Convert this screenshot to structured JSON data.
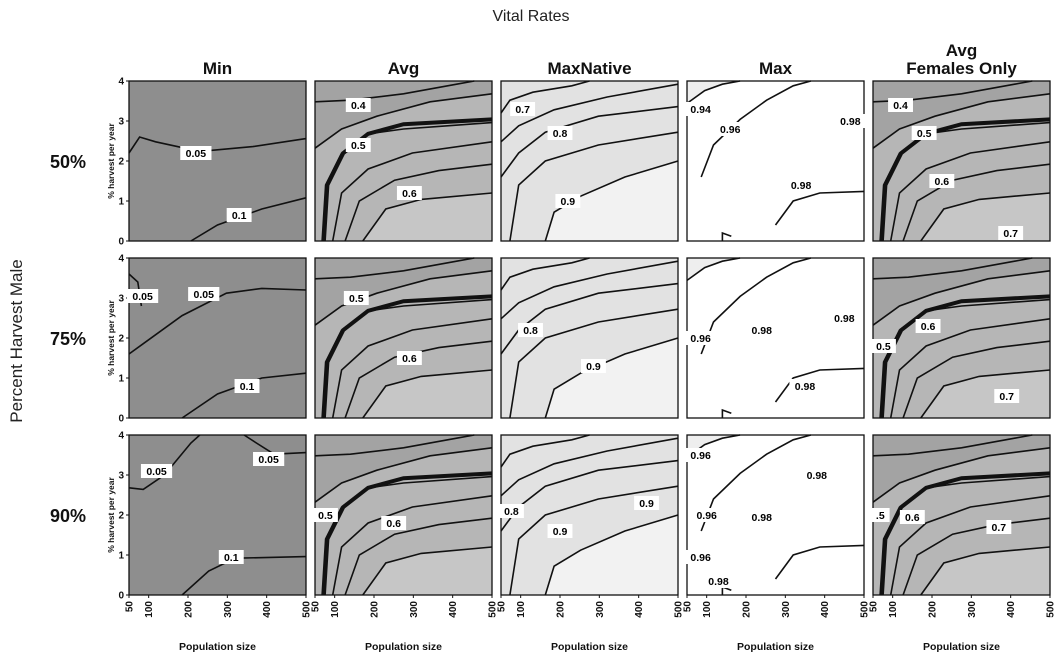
{
  "chart_data": {
    "type": "contour",
    "title": "Vital Rates",
    "row_axis_label": "Percent Harvest Male",
    "columns": [
      "Min",
      "Avg",
      "MaxNative",
      "Max",
      "Avg\nFemales Only"
    ],
    "rows": [
      "50%",
      "75%",
      "90%"
    ],
    "xlabel": "Population size",
    "ylabel": "% harvest per year",
    "xlim": [
      50,
      500
    ],
    "ylim": [
      0,
      4
    ],
    "xticks": [
      50,
      100,
      200,
      300,
      400,
      500
    ],
    "yticks": [
      0,
      1,
      2,
      3,
      4
    ],
    "colors": {
      "fill_dark": "#8e8e8e",
      "fill_mid": "#b6b6b6",
      "fill_light": "#e2e2e2",
      "fill_lightest": "#f2f2f2",
      "fill_white": "#ffffff",
      "line": "#111111"
    },
    "panels": [
      {
        "row": 0,
        "col": 0,
        "labels": [
          {
            "text": "0.05",
            "x": 220,
            "y": 2.2
          },
          {
            "text": "0.1",
            "x": 330,
            "y": 0.65
          }
        ]
      },
      {
        "row": 0,
        "col": 1,
        "labels": [
          {
            "text": "0.4",
            "x": 160,
            "y": 3.4
          },
          {
            "text": "0.5",
            "x": 160,
            "y": 2.4
          },
          {
            "text": "0.6",
            "x": 290,
            "y": 1.2
          }
        ]
      },
      {
        "row": 0,
        "col": 2,
        "labels": [
          {
            "text": "0.7",
            "x": 105,
            "y": 3.3
          },
          {
            "text": "0.8",
            "x": 200,
            "y": 2.7
          },
          {
            "text": "0.9",
            "x": 220,
            "y": 1.0
          }
        ]
      },
      {
        "row": 0,
        "col": 3,
        "labels": [
          {
            "text": "0.94",
            "x": 60,
            "y": 3.3
          },
          {
            "text": "0.96",
            "x": 160,
            "y": 2.8
          },
          {
            "text": "0.98",
            "x": 480,
            "y": 3.0
          },
          {
            "text": "0.98",
            "x": 340,
            "y": 1.4
          }
        ]
      },
      {
        "row": 0,
        "col": 4,
        "labels": [
          {
            "text": "0.4",
            "x": 120,
            "y": 3.4
          },
          {
            "text": "0.5",
            "x": 180,
            "y": 2.7
          },
          {
            "text": "0.6",
            "x": 225,
            "y": 1.5
          },
          {
            "text": "0.7",
            "x": 400,
            "y": 0.2
          }
        ]
      },
      {
        "row": 1,
        "col": 0,
        "labels": [
          {
            "text": "0.05",
            "x": 62,
            "y": 3.05
          },
          {
            "text": "0.05",
            "x": 240,
            "y": 3.1
          },
          {
            "text": "0.1",
            "x": 350,
            "y": 0.8
          }
        ]
      },
      {
        "row": 1,
        "col": 1,
        "labels": [
          {
            "text": "0.5",
            "x": 155,
            "y": 3.0
          },
          {
            "text": "0.6",
            "x": 290,
            "y": 1.5
          }
        ]
      },
      {
        "row": 1,
        "col": 2,
        "labels": [
          {
            "text": "0.8",
            "x": 125,
            "y": 2.2
          },
          {
            "text": "0.9",
            "x": 285,
            "y": 1.3
          }
        ]
      },
      {
        "row": 1,
        "col": 3,
        "labels": [
          {
            "text": "0.96",
            "x": 65,
            "y": 2.0
          },
          {
            "text": "0.98",
            "x": 240,
            "y": 2.2
          },
          {
            "text": "0.98",
            "x": 450,
            "y": 2.5
          },
          {
            "text": "0.98",
            "x": 350,
            "y": 0.8
          }
        ]
      },
      {
        "row": 1,
        "col": 4,
        "labels": [
          {
            "text": "0.5",
            "x": 60,
            "y": 1.8
          },
          {
            "text": "0.6",
            "x": 190,
            "y": 2.3
          },
          {
            "text": "0.7",
            "x": 390,
            "y": 0.55
          }
        ]
      },
      {
        "row": 2,
        "col": 0,
        "labels": [
          {
            "text": "0.05",
            "x": 120,
            "y": 3.1
          },
          {
            "text": "0.05",
            "x": 405,
            "y": 3.4
          },
          {
            "text": "0.1",
            "x": 310,
            "y": 0.95
          }
        ]
      },
      {
        "row": 2,
        "col": 1,
        "labels": [
          {
            "text": "0.5",
            "x": 70,
            "y": 2.0
          },
          {
            "text": "0.6",
            "x": 250,
            "y": 1.8
          }
        ]
      },
      {
        "row": 2,
        "col": 2,
        "labels": [
          {
            "text": "0.8",
            "x": 67,
            "y": 2.1
          },
          {
            "text": "0.9",
            "x": 420,
            "y": 2.3
          },
          {
            "text": "0.9",
            "x": 200,
            "y": 1.6
          }
        ]
      },
      {
        "row": 2,
        "col": 3,
        "labels": [
          {
            "text": "0.96",
            "x": 75,
            "y": 3.5
          },
          {
            "text": "0.98",
            "x": 380,
            "y": 3.0
          },
          {
            "text": "0.96",
            "x": 100,
            "y": 2.0
          },
          {
            "text": "0.98",
            "x": 240,
            "y": 1.95
          },
          {
            "text": "0.96",
            "x": 50,
            "y": 0.95
          },
          {
            "text": "0.98",
            "x": 130,
            "y": 0.35
          }
        ]
      },
      {
        "row": 2,
        "col": 4,
        "labels": [
          {
            "text": ".5",
            "x": 60,
            "y": 2.0
          },
          {
            "text": "0.6",
            "x": 150,
            "y": 1.95
          },
          {
            "text": "0.7",
            "x": 370,
            "y": 1.7
          }
        ]
      }
    ]
  }
}
